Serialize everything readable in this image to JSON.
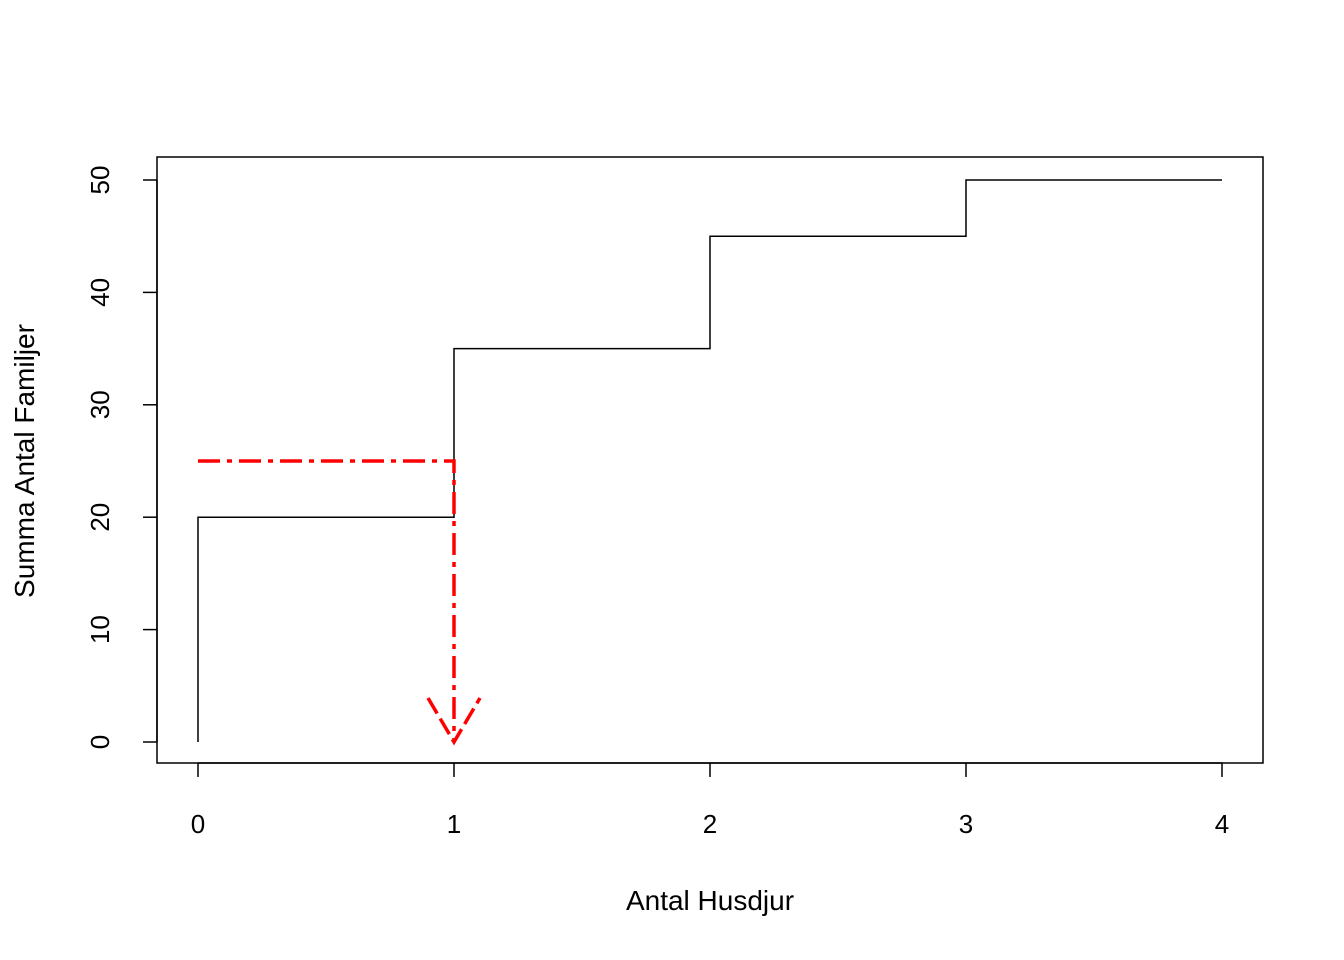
{
  "chart_data": {
    "type": "line",
    "subtype": "step",
    "title": "",
    "xlabel": "Antal Husdjur",
    "ylabel": "Summa Antal Familjer",
    "xlim": [
      0,
      4
    ],
    "ylim": [
      0,
      50
    ],
    "x_ticks": [
      "0",
      "1",
      "2",
      "3",
      "4"
    ],
    "y_ticks": [
      "0",
      "10",
      "20",
      "30",
      "40",
      "50"
    ],
    "grid": false,
    "legend": "none",
    "series": [
      {
        "color": "#000000",
        "points": [
          {
            "x": 0,
            "y": 0
          },
          {
            "x": 0,
            "y": 20
          },
          {
            "x": 1,
            "y": 20
          },
          {
            "x": 1,
            "y": 35
          },
          {
            "x": 2,
            "y": 35
          },
          {
            "x": 2,
            "y": 45
          },
          {
            "x": 3,
            "y": 45
          },
          {
            "x": 3,
            "y": 50
          },
          {
            "x": 4,
            "y": 50
          }
        ]
      }
    ],
    "annotations": [
      {
        "type": "arrow",
        "style": "dash-dot",
        "color": "#ff0000",
        "points": [
          {
            "x": 0,
            "y": 25
          },
          {
            "x": 1,
            "y": 25
          },
          {
            "x": 1,
            "y": 0
          }
        ]
      }
    ]
  }
}
